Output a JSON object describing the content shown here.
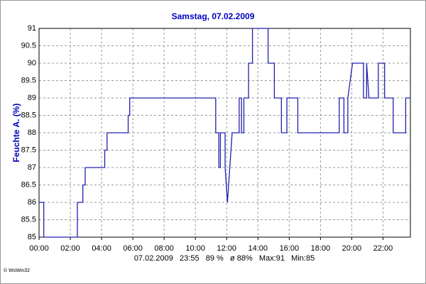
{
  "chart_data": {
    "type": "line",
    "title": "Samstag, 07.02.2009",
    "y_label": "Feuchte A. (%)",
    "footer": "07.02.2009   23:55   89 %   ø 88%   Max:91   Min:85",
    "credit": "© WsWin32",
    "x": [
      0,
      0.3,
      0.3,
      2.45,
      2.45,
      2.8,
      2.8,
      2.95,
      2.95,
      4.2,
      4.2,
      4.35,
      4.35,
      5.7,
      5.7,
      5.8,
      5.8,
      11.3,
      11.3,
      11.5,
      11.5,
      11.6,
      11.6,
      11.9,
      11.9,
      12.05,
      12.05,
      12.2,
      12.2,
      12.35,
      12.35,
      12.8,
      12.8,
      12.95,
      12.95,
      13.1,
      13.1,
      13.4,
      13.4,
      13.65,
      13.65,
      13.8,
      13.8,
      14.65,
      14.65,
      15.05,
      15.05,
      15.5,
      15.5,
      15.85,
      15.85,
      16.55,
      16.55,
      19.2,
      19.2,
      19.5,
      19.5,
      19.75,
      19.75,
      20.05,
      20.05,
      20.75,
      20.75,
      20.95,
      20.95,
      21.1,
      21.1,
      21.7,
      21.7,
      22.1,
      22.1,
      22.65,
      22.65,
      23.45,
      23.45,
      23.75
    ],
    "series": [
      {
        "name": "Feuchte A.",
        "color": "#2020b0",
        "values": [
          86,
          86,
          85,
          85,
          86,
          86,
          86.5,
          86.5,
          87,
          87,
          87.5,
          87.5,
          88,
          88,
          88.5,
          88.5,
          89,
          89,
          88,
          88,
          87,
          87,
          88,
          88,
          87,
          86,
          86,
          87,
          87,
          88,
          88,
          88,
          89,
          89,
          88,
          88,
          89,
          89,
          90,
          90,
          91,
          91,
          91,
          91,
          90,
          90,
          89,
          89,
          88,
          88,
          89,
          89,
          88,
          88,
          89,
          89,
          88,
          88,
          89,
          90,
          90,
          90,
          89,
          89,
          90,
          89,
          89,
          89,
          90,
          90,
          89,
          89,
          88,
          88,
          89,
          89
        ]
      }
    ],
    "xlim": [
      0,
      23.75
    ],
    "xticks": [
      {
        "value": 0,
        "label": "00:00"
      },
      {
        "value": 2,
        "label": "02:00"
      },
      {
        "value": 4,
        "label": "04:00"
      },
      {
        "value": 6,
        "label": "06:00"
      },
      {
        "value": 8,
        "label": "08:00"
      },
      {
        "value": 10,
        "label": "10:00"
      },
      {
        "value": 12,
        "label": "12:00"
      },
      {
        "value": 14,
        "label": "14:00"
      },
      {
        "value": 16,
        "label": "16:00"
      },
      {
        "value": 18,
        "label": "18:00"
      },
      {
        "value": 20,
        "label": "20:00"
      },
      {
        "value": 22,
        "label": "22:00"
      }
    ],
    "ylim": [
      85,
      91
    ],
    "yticks": [
      85,
      85.5,
      86,
      86.5,
      87,
      87.5,
      88,
      88.5,
      89,
      89.5,
      90,
      90.5,
      91
    ],
    "grid": true
  }
}
